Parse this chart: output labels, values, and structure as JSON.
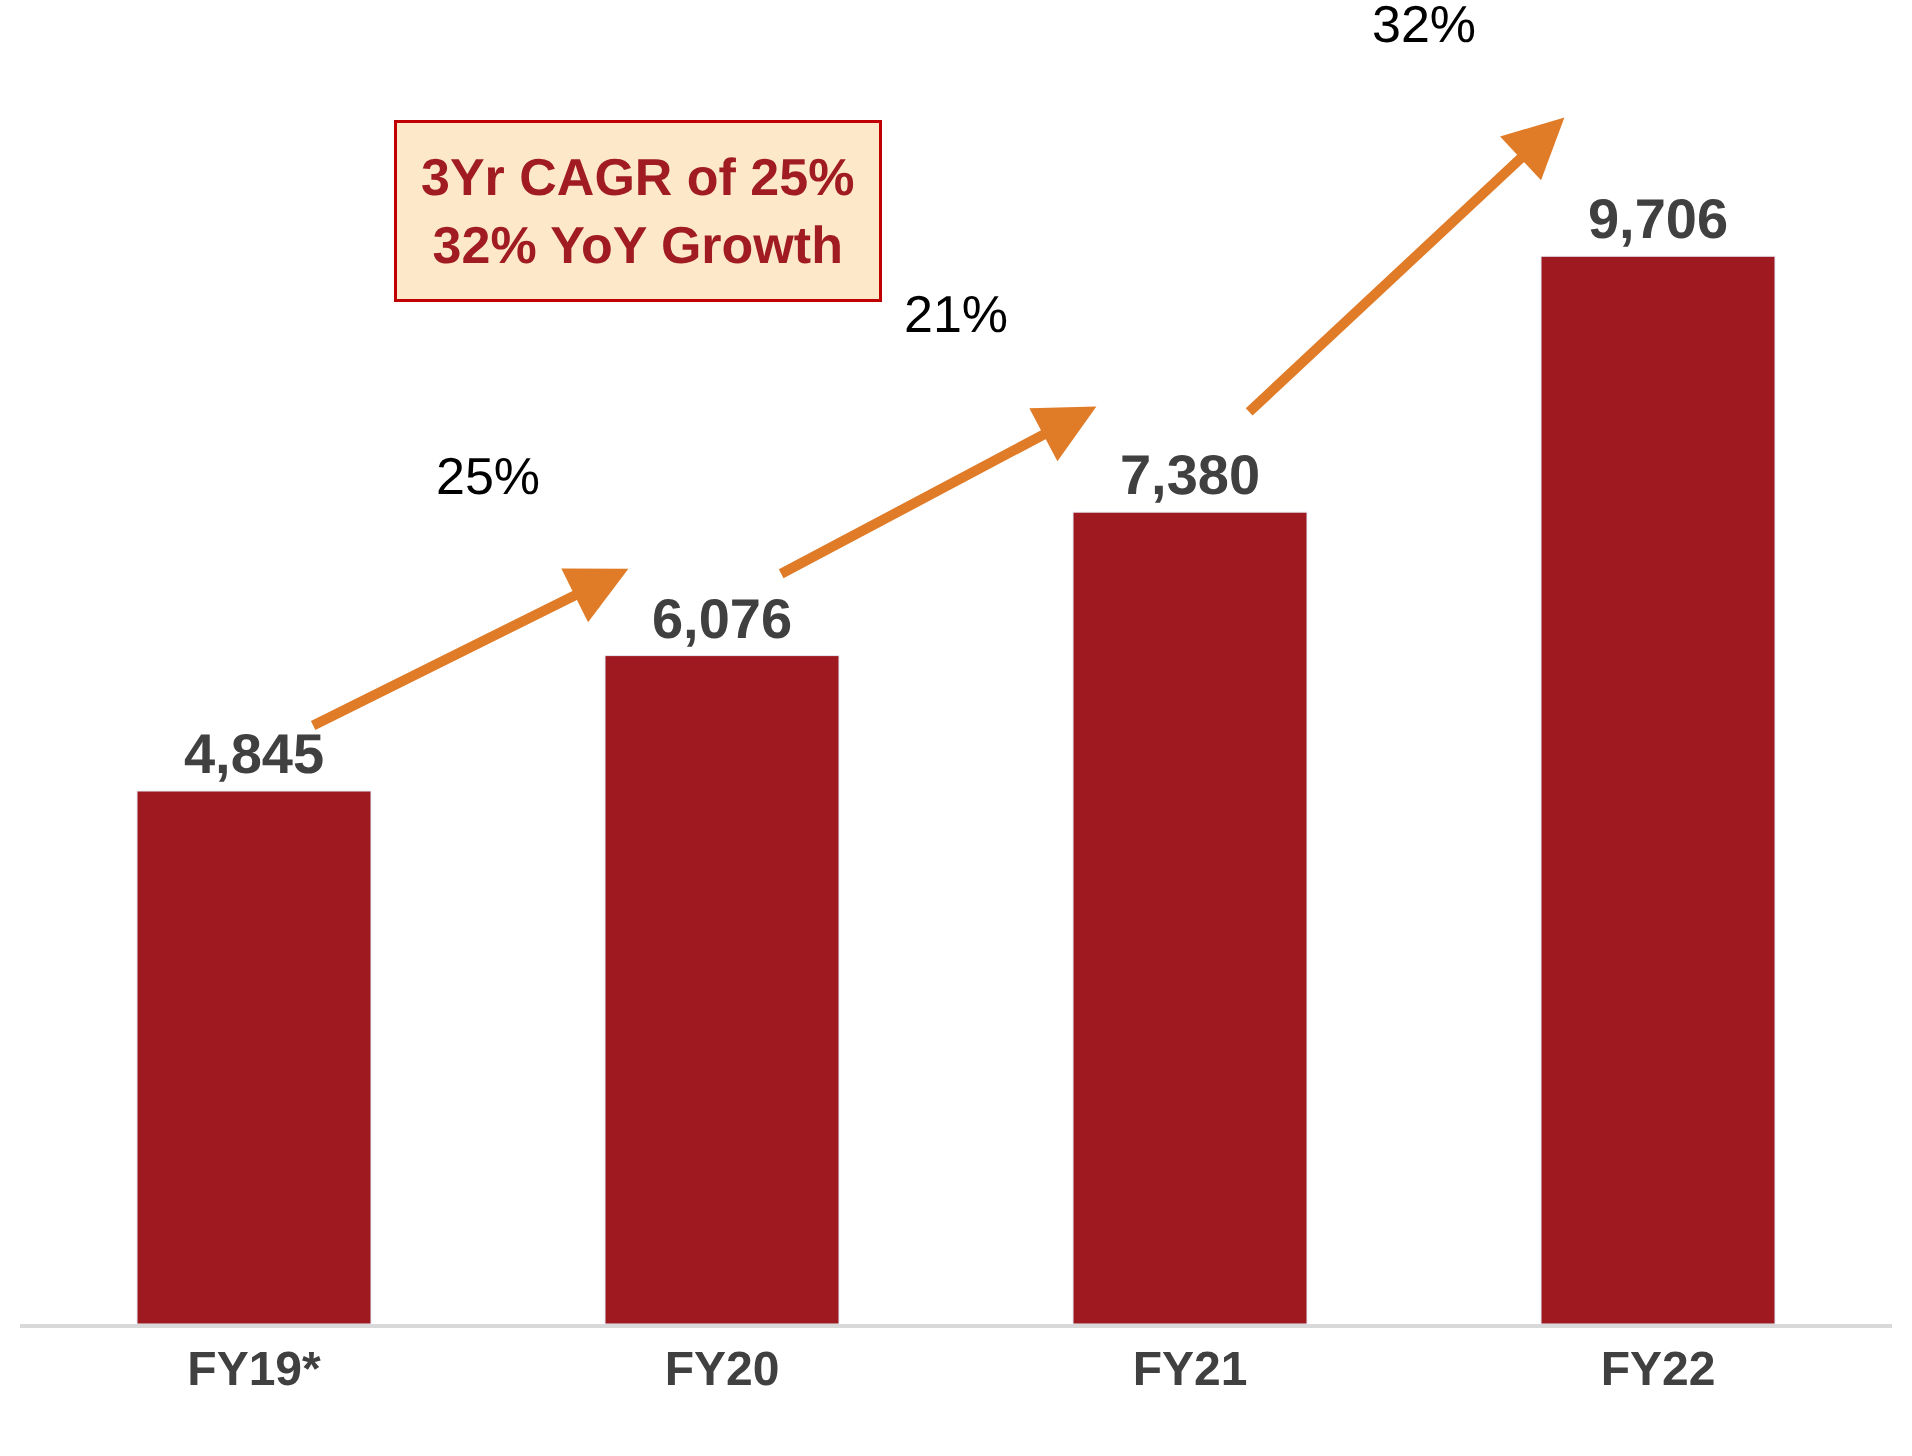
{
  "chart_data": {
    "type": "bar",
    "categories": [
      "FY19*",
      "FY20",
      "FY21",
      "FY22"
    ],
    "values": [
      4845,
      6076,
      7380,
      9706
    ],
    "color": "#9e1a20",
    "data_labels": true,
    "value_labels": [
      "4,845",
      "6,076",
      "7,380",
      "9,706"
    ],
    "annotations": [
      "3Yr CAGR of 25%\n32% YoY Growth",
      "25%",
      "21%",
      "32%"
    ]
  }
}
